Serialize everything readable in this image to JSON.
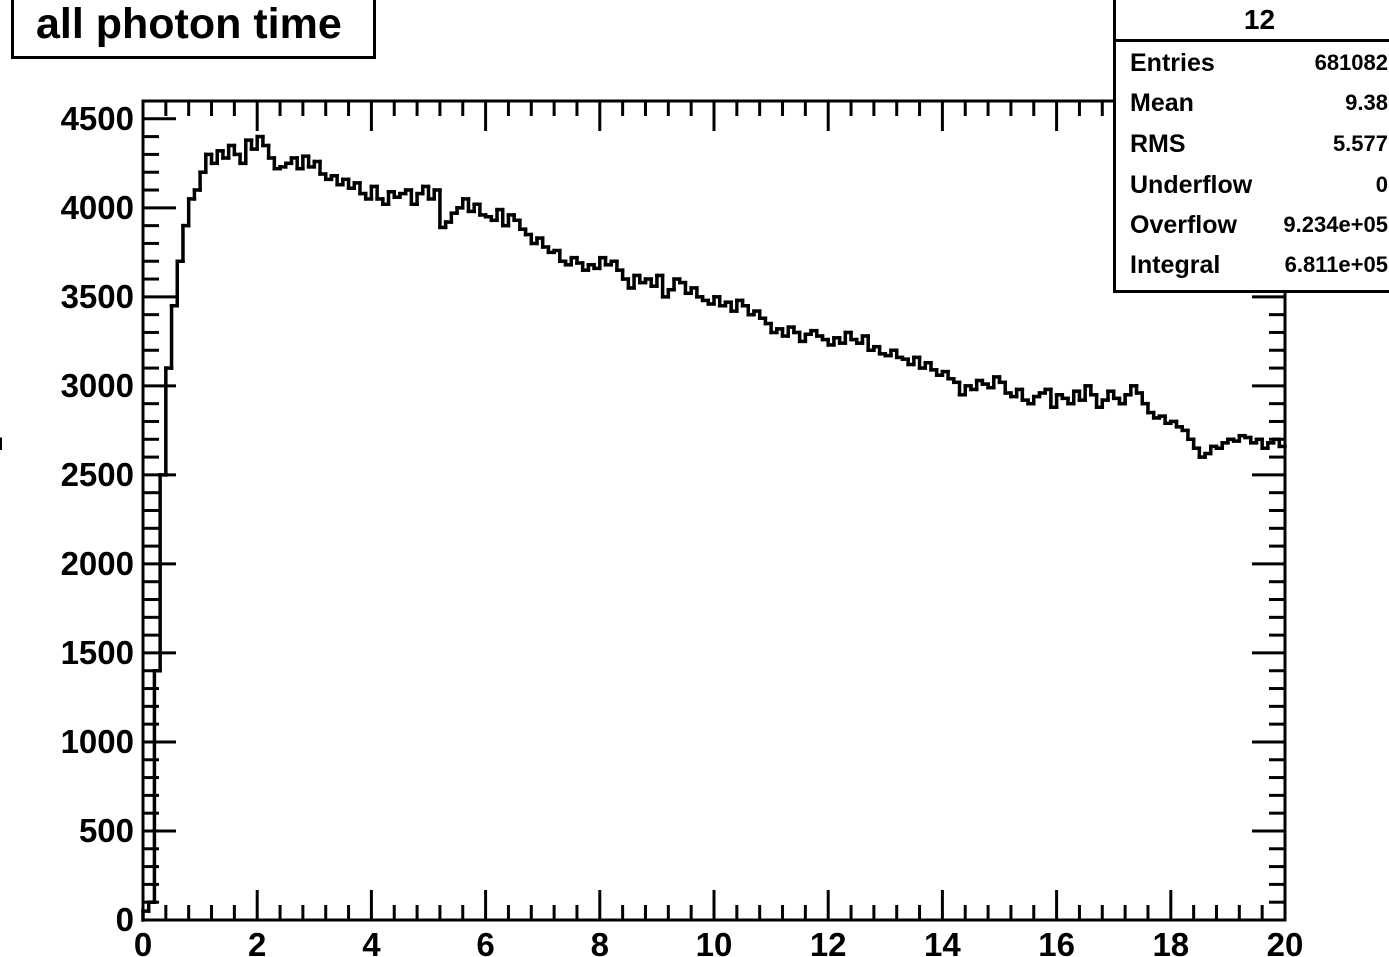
{
  "chart_data": {
    "type": "histogram",
    "title": "all photon time",
    "xlim": [
      0,
      20
    ],
    "ylim": [
      0,
      4600
    ],
    "x_ticks": [
      "0",
      "2",
      "4",
      "6",
      "8",
      "10",
      "12",
      "14",
      "16",
      "18",
      "20"
    ],
    "y_ticks": [
      "0",
      "500",
      "1000",
      "1500",
      "2000",
      "2500",
      "3000",
      "3500",
      "4000",
      "4500"
    ],
    "bin_width": 0.1,
    "bin_low_edges": [
      0.0,
      0.1,
      0.2,
      0.3,
      0.4,
      0.5,
      0.6,
      0.7,
      0.8,
      0.9,
      1.0,
      1.1,
      1.2,
      1.3,
      1.4,
      1.5,
      1.6,
      1.7,
      1.8,
      1.9,
      2.0,
      2.1,
      2.2,
      2.3,
      2.4,
      2.5,
      2.6,
      2.7,
      2.8,
      2.9,
      3.0,
      3.1,
      3.2,
      3.3,
      3.4,
      3.5,
      3.6,
      3.7,
      3.8,
      3.9,
      4.0,
      4.1,
      4.2,
      4.3,
      4.4,
      4.5,
      4.6,
      4.7,
      4.8,
      4.9,
      5.0,
      5.1,
      5.2,
      5.3,
      5.4,
      5.5,
      5.6,
      5.7,
      5.8,
      5.9,
      6.0,
      6.1,
      6.2,
      6.3,
      6.4,
      6.5,
      6.6,
      6.7,
      6.8,
      6.9,
      7.0,
      7.1,
      7.2,
      7.3,
      7.4,
      7.5,
      7.6,
      7.7,
      7.8,
      7.9,
      8.0,
      8.1,
      8.2,
      8.3,
      8.4,
      8.5,
      8.6,
      8.7,
      8.8,
      8.9,
      9.0,
      9.1,
      9.2,
      9.3,
      9.4,
      9.5,
      9.6,
      9.7,
      9.8,
      9.9,
      10.0,
      10.1,
      10.2,
      10.3,
      10.4,
      10.5,
      10.6,
      10.7,
      10.8,
      10.9,
      11.0,
      11.1,
      11.2,
      11.3,
      11.4,
      11.5,
      11.6,
      11.7,
      11.8,
      11.9,
      12.0,
      12.1,
      12.2,
      12.3,
      12.4,
      12.5,
      12.6,
      12.7,
      12.8,
      12.9,
      13.0,
      13.1,
      13.2,
      13.3,
      13.4,
      13.5,
      13.6,
      13.7,
      13.8,
      13.9,
      14.0,
      14.1,
      14.2,
      14.3,
      14.4,
      14.5,
      14.6,
      14.7,
      14.8,
      14.9,
      15.0,
      15.1,
      15.2,
      15.3,
      15.4,
      15.5,
      15.6,
      15.7,
      15.8,
      15.9,
      16.0,
      16.1,
      16.2,
      16.3,
      16.4,
      16.5,
      16.6,
      16.7,
      16.8,
      16.9,
      17.0,
      17.1,
      17.2,
      17.3,
      17.4,
      17.5,
      17.6,
      17.7,
      17.8,
      17.9,
      18.0,
      18.1,
      18.2,
      18.3,
      18.4,
      18.5,
      18.6,
      18.7,
      18.8,
      18.9,
      19.0,
      19.1,
      19.2,
      19.3,
      19.4,
      19.5,
      19.6,
      19.7,
      19.8,
      19.9
    ],
    "values": [
      50,
      100,
      1400,
      2500,
      3100,
      3450,
      3700,
      3900,
      4050,
      4100,
      4200,
      4300,
      4250,
      4320,
      4280,
      4350,
      4300,
      4250,
      4380,
      4330,
      4400,
      4350,
      4280,
      4220,
      4230,
      4250,
      4280,
      4220,
      4290,
      4230,
      4260,
      4190,
      4160,
      4180,
      4130,
      4160,
      4110,
      4140,
      4080,
      4050,
      4120,
      4050,
      4020,
      4090,
      4060,
      4080,
      4100,
      4020,
      4080,
      4120,
      4050,
      4100,
      3890,
      3920,
      3970,
      4000,
      4050,
      3980,
      4020,
      3960,
      3950,
      3930,
      3990,
      3900,
      3960,
      3930,
      3880,
      3850,
      3800,
      3830,
      3780,
      3750,
      3760,
      3700,
      3680,
      3720,
      3690,
      3650,
      3680,
      3660,
      3720,
      3680,
      3700,
      3650,
      3600,
      3550,
      3620,
      3580,
      3600,
      3560,
      3620,
      3500,
      3540,
      3600,
      3580,
      3520,
      3550,
      3500,
      3480,
      3460,
      3500,
      3450,
      3470,
      3420,
      3480,
      3450,
      3400,
      3420,
      3380,
      3350,
      3300,
      3320,
      3280,
      3330,
      3300,
      3250,
      3290,
      3310,
      3280,
      3260,
      3230,
      3270,
      3240,
      3300,
      3260,
      3240,
      3280,
      3200,
      3220,
      3180,
      3170,
      3200,
      3160,
      3150,
      3120,
      3160,
      3100,
      3130,
      3090,
      3060,
      3080,
      3040,
      3020,
      2950,
      3000,
      2980,
      3030,
      3010,
      2990,
      3050,
      3020,
      2960,
      2940,
      2980,
      2920,
      2900,
      2940,
      2960,
      2980,
      2880,
      2950,
      2930,
      2900,
      2970,
      2920,
      3000,
      2950,
      2880,
      2920,
      2970,
      2930,
      2900,
      2950,
      3000,
      2960,
      2900,
      2850,
      2820,
      2830,
      2790,
      2800,
      2770,
      2750,
      2700,
      2650,
      2600,
      2620,
      2660,
      2650,
      2680,
      2700,
      2690,
      2720,
      2710,
      2680,
      2700,
      2650,
      2680,
      2700,
      2660,
      2700,
      2680,
      2650,
      2700
    ],
    "stats": {
      "name": "12",
      "rows": [
        {
          "label": "Entries",
          "value": "681082"
        },
        {
          "label": "Mean",
          "value": "9.38"
        },
        {
          "label": "RMS",
          "value": "5.577"
        },
        {
          "label": "Underflow",
          "value": "0"
        },
        {
          "label": "Overflow",
          "value": "9.234e+05"
        },
        {
          "label": "Integral",
          "value": "6.811e+05"
        }
      ]
    },
    "grid": false,
    "colors": {
      "line": "#000000",
      "background": "#ffffff"
    }
  }
}
